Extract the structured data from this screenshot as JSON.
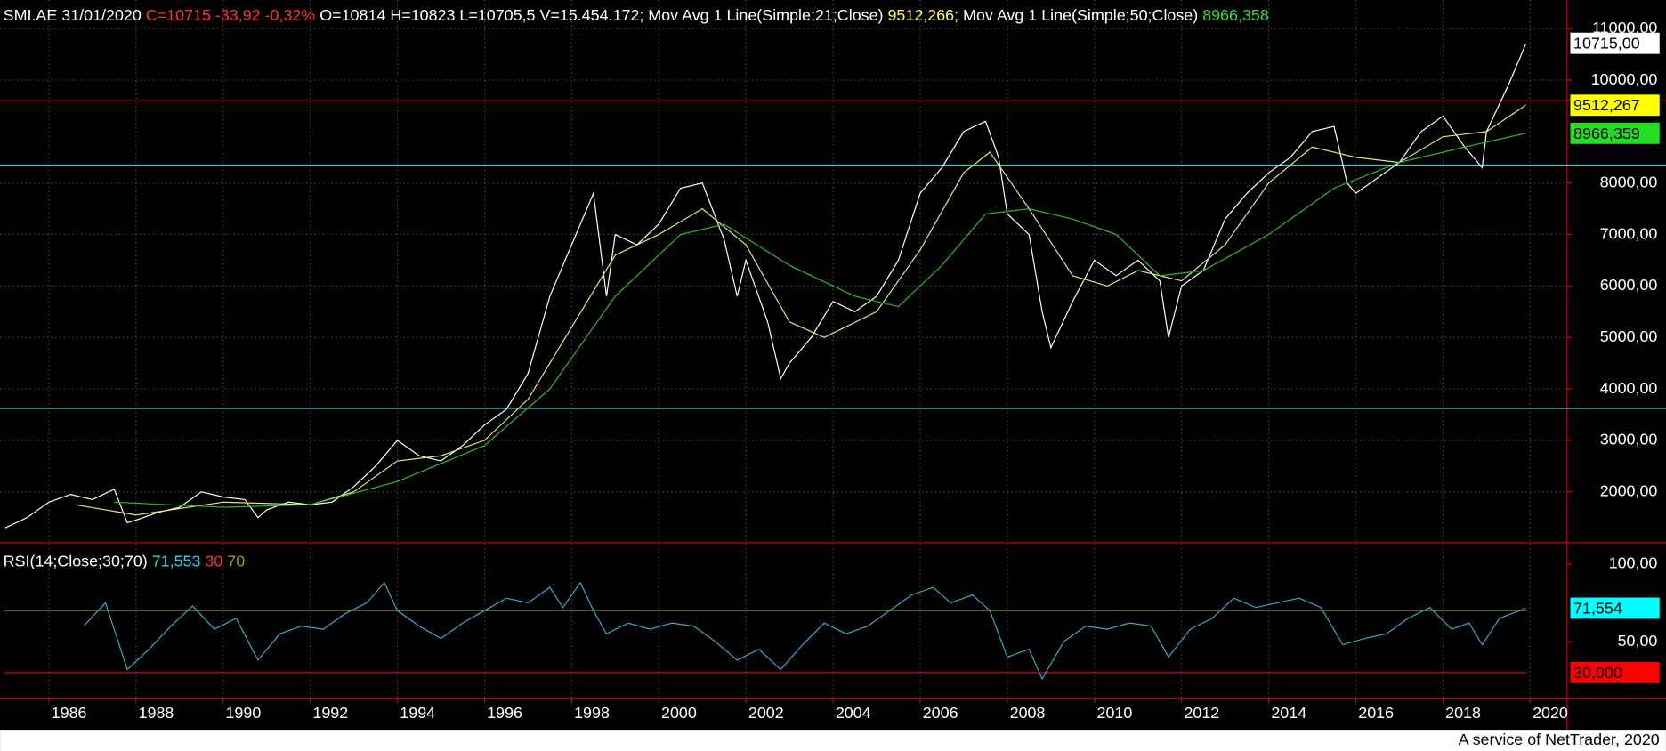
{
  "chart_data": [
    {
      "type": "line",
      "header": [
        {
          "text": "SMI.AE 31/01/2020 ",
          "color": "#ffffff"
        },
        {
          "text": "C=10715 -33,92 -0,32%",
          "color": "#ff3333"
        },
        {
          "text": " O=10814 H=10823 L=10705,5 V=15.454.172; Mov Avg 1 Line(Simple;21;Close) ",
          "color": "#ffffff"
        },
        {
          "text": "9512,266",
          "color": "#ffff55"
        },
        {
          "text": "; Mov Avg 1 Line(Simple;50;Close) ",
          "color": "#ffffff"
        },
        {
          "text": "8966,358",
          "color": "#33dd33"
        }
      ],
      "xlim": [
        1984.88,
        2020.85
      ],
      "xticks": [
        1986,
        1988,
        1990,
        1992,
        1994,
        1996,
        1998,
        2000,
        2002,
        2004,
        2006,
        2008,
        2010,
        2012,
        2014,
        2016,
        2018,
        2020
      ],
      "ylim": [
        1030,
        11557
      ],
      "yticks": [
        {
          "value": 2000,
          "label": "2000,00"
        },
        {
          "value": 3000,
          "label": "3000,00"
        },
        {
          "value": 4000,
          "label": "4000,00"
        },
        {
          "value": 5000,
          "label": "5000,00"
        },
        {
          "value": 6000,
          "label": "6000,00"
        },
        {
          "value": 7000,
          "label": "7000,00"
        },
        {
          "value": 8000,
          "label": "8000,00"
        },
        {
          "value": 10000,
          "label": "10000,00"
        },
        {
          "value": 11000,
          "label": "11000,00"
        }
      ],
      "grid": true,
      "hlines": [
        {
          "value": 9600,
          "color": "#cc0000"
        },
        {
          "value": 8350,
          "color": "#4fc9d0"
        },
        {
          "value": 3620,
          "color": "#4fc9d0"
        }
      ],
      "series": [
        {
          "name": "SMI.AE",
          "color": "#ffffff",
          "x": [
            1985.0,
            1985.5,
            1986.0,
            1986.5,
            1987.0,
            1987.5,
            1987.8,
            1988.0,
            1988.5,
            1989.0,
            1989.5,
            1990.0,
            1990.5,
            1990.8,
            1991.0,
            1991.5,
            1992.0,
            1992.5,
            1993.0,
            1993.5,
            1994.0,
            1994.5,
            1995.0,
            1995.5,
            1996.0,
            1996.5,
            1997.0,
            1997.5,
            1998.0,
            1998.5,
            1998.8,
            1999.0,
            1999.5,
            2000.0,
            2000.5,
            2001.0,
            2001.5,
            2001.8,
            2002.0,
            2002.5,
            2002.8,
            2003.0,
            2003.5,
            2004.0,
            2004.5,
            2005.0,
            2005.5,
            2006.0,
            2006.5,
            2007.0,
            2007.5,
            2007.8,
            2008.0,
            2008.5,
            2008.8,
            2009.0,
            2009.5,
            2010.0,
            2010.5,
            2011.0,
            2011.5,
            2011.7,
            2012.0,
            2012.5,
            2013.0,
            2013.5,
            2014.0,
            2014.5,
            2015.0,
            2015.5,
            2015.8,
            2016.0,
            2016.5,
            2017.0,
            2017.5,
            2018.0,
            2018.5,
            2018.9,
            2019.0,
            2019.5,
            2019.9
          ],
          "values": [
            1300,
            1500,
            1800,
            1950,
            1850,
            2050,
            1400,
            1450,
            1600,
            1700,
            2000,
            1900,
            1850,
            1500,
            1650,
            1800,
            1750,
            1800,
            2100,
            2500,
            3000,
            2700,
            2600,
            2900,
            3300,
            3600,
            4300,
            5800,
            6800,
            7800,
            5800,
            7000,
            6800,
            7200,
            7900,
            8000,
            6900,
            5800,
            6500,
            5300,
            4200,
            4500,
            5000,
            5700,
            5500,
            5800,
            6500,
            7800,
            8300,
            9000,
            9200,
            8500,
            7400,
            7000,
            5500,
            4800,
            5700,
            6500,
            6200,
            6500,
            6100,
            5000,
            6000,
            6300,
            7300,
            7800,
            8200,
            8500,
            9000,
            9100,
            8000,
            7800,
            8100,
            8400,
            9000,
            9300,
            8700,
            8300,
            9000,
            9900,
            10700
          ]
        },
        {
          "name": "Mov Avg 1 Line(Simple;21;Close)",
          "color": "#e6e67a",
          "x": [
            1986.6,
            1988,
            1990,
            1992,
            1993,
            1994,
            1995,
            1996,
            1997,
            1998,
            1999,
            2000,
            2001,
            2002,
            2003,
            2003.8,
            2005,
            2006,
            2007,
            2007.6,
            2008.5,
            2009.5,
            2010.3,
            2011,
            2012,
            2013,
            2014,
            2015,
            2016,
            2017,
            2018,
            2019,
            2019.9
          ],
          "values": [
            1750,
            1550,
            1800,
            1750,
            2000,
            2600,
            2700,
            3000,
            3800,
            5200,
            6600,
            7000,
            7500,
            6800,
            5300,
            5000,
            5500,
            6700,
            8200,
            8600,
            7500,
            6200,
            6000,
            6300,
            6100,
            6800,
            8000,
            8700,
            8500,
            8400,
            8900,
            9000,
            9512
          ]
        },
        {
          "name": "Mov Avg 1 Line(Simple;50;Close)",
          "color": "#33b833",
          "x": [
            1987.5,
            1990,
            1992,
            1994,
            1996,
            1997.5,
            1999,
            2000.5,
            2001.5,
            2003,
            2004.5,
            2005.5,
            2006.5,
            2007.5,
            2008.5,
            2009.5,
            2010.5,
            2011.5,
            2012.5,
            2014,
            2015.5,
            2017,
            2018.5,
            2019.9
          ],
          "values": [
            1800,
            1700,
            1750,
            2200,
            2900,
            4000,
            5800,
            7000,
            7200,
            6400,
            5800,
            5600,
            6400,
            7400,
            7500,
            7300,
            7000,
            6200,
            6300,
            7000,
            7900,
            8400,
            8700,
            8966
          ]
        }
      ],
      "last_labels": [
        {
          "value": 10715,
          "label": "10715,00",
          "bg": "#ffffff"
        },
        {
          "value": 9512.267,
          "label": "9512,267",
          "bg": "#ffff00"
        },
        {
          "value": 8966.359,
          "label": "8966,359",
          "bg": "#22dd22"
        }
      ]
    },
    {
      "type": "line",
      "header": [
        {
          "text": "RSI(14;Close;30;70) ",
          "color": "#ffffff"
        },
        {
          "text": "71,553",
          "color": "#33ccee"
        },
        {
          "text": " 30",
          "color": "#ff3333"
        },
        {
          "text": " 70",
          "color": "#999933"
        }
      ],
      "ylim": [
        13.7,
        113
      ],
      "yticks": [
        {
          "value": 50,
          "label": "50,00"
        },
        {
          "value": 100,
          "label": "100,00"
        }
      ],
      "hlines": [
        {
          "value": 70,
          "color": "#808020"
        },
        {
          "value": 30,
          "color": "#e00000"
        }
      ],
      "series": [
        {
          "name": "RSI",
          "color": "#3aa9c9",
          "x": [
            1986.8,
            1987.3,
            1987.8,
            1988.3,
            1988.8,
            1989.3,
            1989.8,
            1990.3,
            1990.8,
            1991.3,
            1991.8,
            1992.3,
            1992.8,
            1993.3,
            1993.7,
            1994.0,
            1994.5,
            1995.0,
            1995.5,
            1996.0,
            1996.5,
            1997.0,
            1997.5,
            1997.8,
            1998.2,
            1998.5,
            1998.8,
            1999.3,
            1999.8,
            2000.3,
            2000.8,
            2001.3,
            2001.8,
            2002.3,
            2002.8,
            2003.3,
            2003.8,
            2004.3,
            2004.8,
            2005.3,
            2005.8,
            2006.3,
            2006.7,
            2007.2,
            2007.6,
            2008.0,
            2008.5,
            2008.8,
            2009.3,
            2009.8,
            2010.3,
            2010.8,
            2011.3,
            2011.7,
            2012.2,
            2012.7,
            2013.2,
            2013.7,
            2014.2,
            2014.7,
            2015.2,
            2015.7,
            2016.2,
            2016.7,
            2017.2,
            2017.7,
            2018.2,
            2018.6,
            2018.9,
            2019.3,
            2019.9
          ],
          "values": [
            60,
            75,
            32,
            45,
            60,
            73,
            58,
            65,
            38,
            55,
            60,
            58,
            68,
            75,
            88,
            70,
            60,
            52,
            62,
            70,
            78,
            75,
            85,
            72,
            88,
            70,
            55,
            62,
            58,
            62,
            60,
            50,
            38,
            45,
            32,
            48,
            62,
            55,
            60,
            70,
            80,
            85,
            75,
            80,
            70,
            40,
            45,
            26,
            50,
            60,
            58,
            62,
            60,
            40,
            58,
            65,
            78,
            72,
            75,
            78,
            72,
            48,
            52,
            55,
            65,
            72,
            58,
            62,
            48,
            65,
            71.6
          ]
        }
      ],
      "last_labels": [
        {
          "value": 71.554,
          "label": "71,554",
          "bg": "#00ffff"
        },
        {
          "value": 30,
          "label": "30,000",
          "bg": "#ff0000"
        }
      ]
    }
  ],
  "footer": "A service of NetTrader, 2020"
}
